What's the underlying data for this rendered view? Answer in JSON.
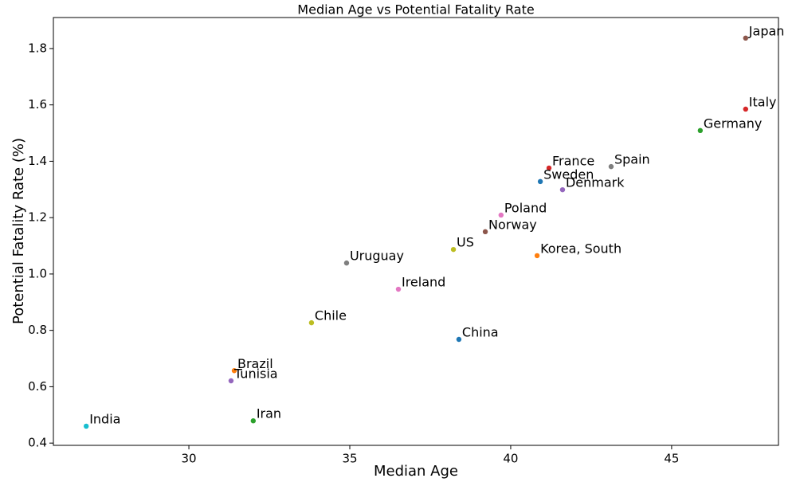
{
  "chart_data": {
    "type": "scatter",
    "title": "Median Age vs Potential Fatality Rate",
    "xlabel": "Median Age",
    "ylabel": "Potential Fatality Rate (%)",
    "labels": [
      "Japan",
      "Italy",
      "Germany",
      "France",
      "Spain",
      "Sweden",
      "Denmark",
      "Poland",
      "Norway",
      "US",
      "Korea, South",
      "Uruguay",
      "Ireland",
      "Chile",
      "China",
      "Brazil",
      "Tunisia",
      "Iran",
      "India"
    ],
    "x": [
      47.3,
      47.3,
      45.89,
      41.19,
      43.12,
      40.92,
      41.61,
      39.7,
      39.21,
      38.22,
      40.82,
      34.9,
      36.51,
      33.81,
      38.39,
      31.41,
      31.31,
      32.0,
      26.81
    ],
    "values": [
      1.837,
      1.585,
      1.509,
      1.376,
      1.381,
      1.328,
      1.299,
      1.209,
      1.15,
      1.087,
      1.065,
      1.039,
      0.946,
      0.827,
      0.768,
      0.657,
      0.621,
      0.479,
      0.46
    ],
    "colors": [
      "#8c564b",
      "#d62728",
      "#2ca02c",
      "#d62728",
      "#7f7f7f",
      "#1f77b4",
      "#9467bd",
      "#e377c2",
      "#8c564b",
      "#bcbd22",
      "#ff7f0e",
      "#7f7f7f",
      "#e377c2",
      "#bcbd22",
      "#1f77b4",
      "#ff7f0e",
      "#9467bd",
      "#2ca02c",
      "#17becf"
    ],
    "xlim": [
      25.79,
      48.32
    ],
    "ylim": [
      0.392,
      1.91
    ],
    "xticks": [
      30,
      35,
      40,
      45
    ],
    "yticks": [
      0.4,
      0.6,
      0.8,
      {
        "value": 1,
        "label": "1.0"
      },
      1.2,
      1.4,
      1.6,
      1.8
    ],
    "grid": false
  }
}
